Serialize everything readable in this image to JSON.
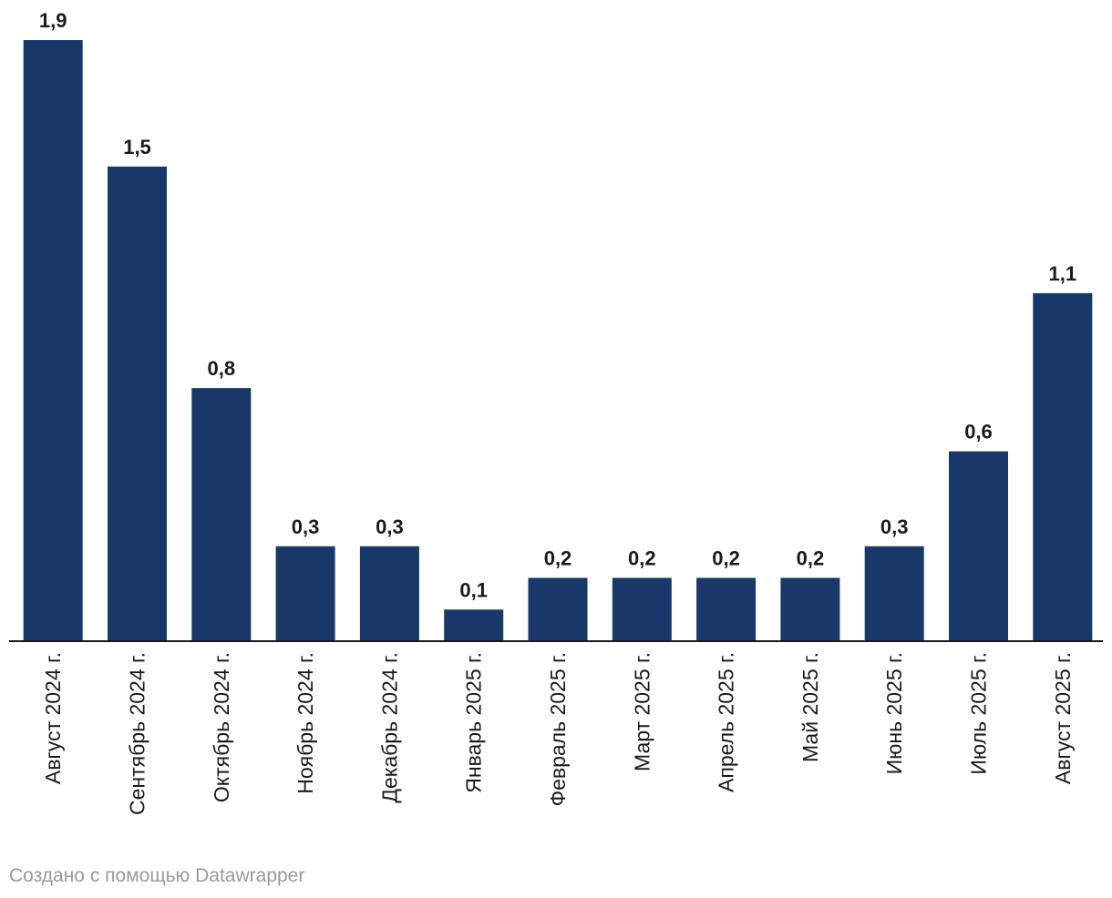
{
  "chart_data": {
    "type": "bar",
    "title": "",
    "xlabel": "",
    "ylabel": "",
    "ylim": [
      0,
      1.9
    ],
    "grid": false,
    "categories": [
      "Август 2024 г.",
      "Сентябрь 2024 г.",
      "Октябрь 2024 г.",
      "Ноябрь 2024 г.",
      "Декабрь 2024 г.",
      "Январь 2025 г.",
      "Февраль 2025 г.",
      "Март 2025 г.",
      "Апрель 2025 г.",
      "Май 2025 г.",
      "Июнь 2025 г.",
      "Июль 2025 г.",
      "Август 2025 г."
    ],
    "values": [
      1.9,
      1.5,
      0.8,
      0.3,
      0.3,
      0.1,
      0.2,
      0.2,
      0.2,
      0.2,
      0.3,
      0.6,
      1.1
    ],
    "value_labels": [
      "1,9",
      "1,5",
      "0,8",
      "0,3",
      "0,3",
      "0,1",
      "0,2",
      "0,2",
      "0,2",
      "0,2",
      "0,3",
      "0,6",
      "1,1"
    ],
    "bar_color": "#19386a",
    "axis_color": "#1a1a1a"
  },
  "footer": {
    "credit": "Создано с помощью Datawrapper"
  }
}
